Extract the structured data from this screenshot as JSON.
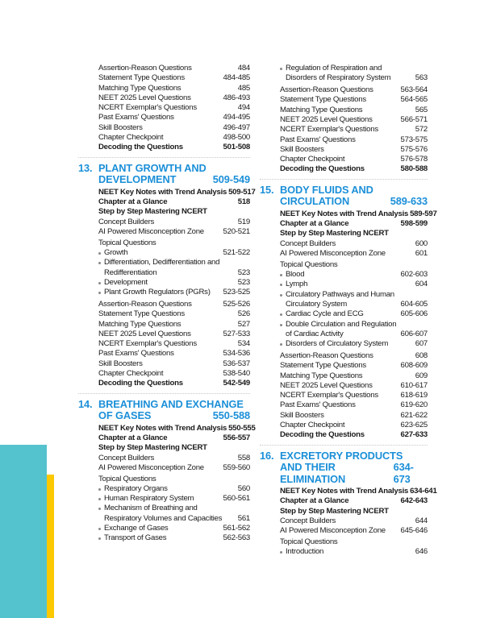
{
  "colors": {
    "heading": "#1b8fd8",
    "teal_bar": "#55c3cd",
    "yellow_bar": "#fcc800"
  },
  "left_column": [
    {
      "type": "items",
      "items": [
        {
          "label": "Assertion-Reason Questions",
          "pages": "484"
        },
        {
          "label": "Statement Type Questions",
          "pages": "484-485"
        },
        {
          "label": "Matching Type Questions",
          "pages": "485"
        },
        {
          "label": "NEET 2025 Level Questions",
          "pages": "486-493"
        },
        {
          "label": "NCERT Exemplar's Questions",
          "pages": "494"
        },
        {
          "label": "Past Exams' Questions",
          "pages": "494-495"
        },
        {
          "label": "Skill Boosters",
          "pages": "496-497"
        },
        {
          "label": "Chapter Checkpoint",
          "pages": "498-500"
        },
        {
          "label": "Decoding the Questions",
          "pages": "501-508",
          "bold": true
        }
      ]
    },
    {
      "type": "chapter",
      "number": "13.",
      "title_line1": "PLANT GROWTH AND",
      "title_line2": "DEVELOPMENT",
      "pages": "509-549",
      "items": [
        {
          "label": "NEET Key Notes with Trend Analysis",
          "pages": "509-517",
          "bold": true
        },
        {
          "label": "Chapter at a Glance",
          "pages": "518",
          "bold": true
        },
        {
          "label": "Step by Step Mastering NCERT",
          "pages": "",
          "bold": true
        },
        {
          "label": "Concept Builders",
          "pages": "519"
        },
        {
          "label": "AI Powered Misconception Zone",
          "pages": "520-521"
        },
        {
          "label": "Topical Questions",
          "pages": "",
          "gap": true
        },
        {
          "label": "Growth",
          "pages": "521-522",
          "bullet": true
        },
        {
          "label": "Differentiation, Dedifferentiation and Redifferentiation",
          "pages": "523",
          "bullet": true,
          "multi": true
        },
        {
          "label": "Development",
          "pages": "523",
          "bullet": true
        },
        {
          "label": "Plant Growth Regulators (PGRs)",
          "pages": "523-525",
          "bullet": true
        },
        {
          "label": "Assertion-Reason Questions",
          "pages": "525-526",
          "sep": true
        },
        {
          "label": "Statement Type Questions",
          "pages": "526"
        },
        {
          "label": "Matching Type Questions",
          "pages": "527"
        },
        {
          "label": "NEET 2025 Level Questions",
          "pages": "527-533"
        },
        {
          "label": "NCERT Exemplar's Questions",
          "pages": "534"
        },
        {
          "label": "Past Exams' Questions",
          "pages": "534-536"
        },
        {
          "label": "Skill Boosters",
          "pages": "536-537"
        },
        {
          "label": "Chapter Checkpoint",
          "pages": "538-540"
        },
        {
          "label": "Decoding the Questions",
          "pages": "542-549",
          "bold": true
        }
      ]
    },
    {
      "type": "chapter",
      "number": "14.",
      "title_line1": "BREATHING AND EXCHANGE",
      "title_line2": "OF GASES",
      "pages": "550-588",
      "items": [
        {
          "label": "NEET Key Notes with Trend Analysis",
          "pages": "550-555",
          "bold": true
        },
        {
          "label": "Chapter at a Glance",
          "pages": "556-557",
          "bold": true
        },
        {
          "label": "Step by Step Mastering NCERT",
          "pages": "",
          "bold": true
        },
        {
          "label": "Concept Builders",
          "pages": "558"
        },
        {
          "label": "AI Powered Misconception Zone",
          "pages": "559-560"
        },
        {
          "label": "Topical Questions",
          "pages": "",
          "gap": true
        },
        {
          "label": "Respiratory Organs",
          "pages": "560",
          "bullet": true
        },
        {
          "label": "Human Respiratory System",
          "pages": "560-561",
          "bullet": true
        },
        {
          "label": "Mechanism of Breathing and Respiratory Volumes and Capacities",
          "pages": "561",
          "bullet": true,
          "multi": true
        },
        {
          "label": "Exchange of Gases",
          "pages": "561-562",
          "bullet": true
        },
        {
          "label": "Transport of Gases",
          "pages": "562-563",
          "bullet": true
        }
      ]
    }
  ],
  "right_column": [
    {
      "type": "items",
      "items": [
        {
          "label": "Regulation of Respiration and Disorders of Respiratory System",
          "pages": "563",
          "bullet": true,
          "multi": true
        },
        {
          "label": "Assertion-Reason Questions",
          "pages": "563-564",
          "sep": true
        },
        {
          "label": "Statement Type Questions",
          "pages": "564-565"
        },
        {
          "label": "Matching Type Questions",
          "pages": "565"
        },
        {
          "label": "NEET 2025 Level Questions",
          "pages": "566-571"
        },
        {
          "label": "NCERT Exemplar's Questions",
          "pages": "572"
        },
        {
          "label": "Past Exams' Questions",
          "pages": "573-575"
        },
        {
          "label": "Skill Boosters",
          "pages": "575-576"
        },
        {
          "label": "Chapter Checkpoint",
          "pages": "576-578"
        },
        {
          "label": "Decoding the Questions",
          "pages": "580-588",
          "bold": true
        }
      ]
    },
    {
      "type": "chapter",
      "number": "15.",
      "title_line1": "BODY FLUIDS AND",
      "title_line2": "CIRCULATION",
      "pages": "589-633",
      "items": [
        {
          "label": "NEET Key Notes with Trend Analysis",
          "pages": "589-597",
          "bold": true
        },
        {
          "label": "Chapter at a Glance",
          "pages": "598-599",
          "bold": true
        },
        {
          "label": "Step by Step Mastering NCERT",
          "pages": "",
          "bold": true
        },
        {
          "label": "Concept Builders",
          "pages": "600"
        },
        {
          "label": "AI Powered Misconception Zone",
          "pages": "601"
        },
        {
          "label": "Topical Questions",
          "pages": "",
          "gap": true
        },
        {
          "label": "Blood",
          "pages": "602-603",
          "bullet": true
        },
        {
          "label": "Lymph",
          "pages": "604",
          "bullet": true
        },
        {
          "label": "Circulatory Pathways and Human Circulatory System",
          "pages": "604-605",
          "bullet": true,
          "multi": true
        },
        {
          "label": "Cardiac Cycle and ECG",
          "pages": "605-606",
          "bullet": true
        },
        {
          "label": "Double Circulation and Regulation of Cardiac Activity",
          "pages": "606-607",
          "bullet": true,
          "multi": true
        },
        {
          "label": "Disorders of Circulatory System",
          "pages": "607",
          "bullet": true
        },
        {
          "label": "Assertion-Reason Questions",
          "pages": "608",
          "sep": true
        },
        {
          "label": "Statement Type Questions",
          "pages": "608-609"
        },
        {
          "label": "Matching Type Questions",
          "pages": "609"
        },
        {
          "label": "NEET 2025 Level Questions",
          "pages": "610-617"
        },
        {
          "label": "NCERT Exemplar's Questions",
          "pages": "618-619"
        },
        {
          "label": "Past Exams' Questions",
          "pages": "619-620"
        },
        {
          "label": "Skill Boosters",
          "pages": "621-622"
        },
        {
          "label": "Chapter Checkpoint",
          "pages": "623-625"
        },
        {
          "label": "Decoding the Questions",
          "pages": "627-633",
          "bold": true
        }
      ]
    },
    {
      "type": "chapter",
      "number": "16.",
      "title_line1": "EXCRETORY PRODUCTS",
      "title_line2": "AND THEIR ELIMINATION",
      "pages": "634-673",
      "items": [
        {
          "label": "NEET Key Notes with Trend Analysis",
          "pages": "634-641",
          "bold": true
        },
        {
          "label": "Chapter at a Glance",
          "pages": "642-643",
          "bold": true
        },
        {
          "label": "Step by Step Mastering NCERT",
          "pages": "",
          "bold": true
        },
        {
          "label": "Concept Builders",
          "pages": "644"
        },
        {
          "label": "AI Powered Misconception Zone",
          "pages": "645-646"
        },
        {
          "label": "Topical Questions",
          "pages": "",
          "gap": true
        },
        {
          "label": "Introduction",
          "pages": "646",
          "bullet": true
        }
      ]
    }
  ]
}
